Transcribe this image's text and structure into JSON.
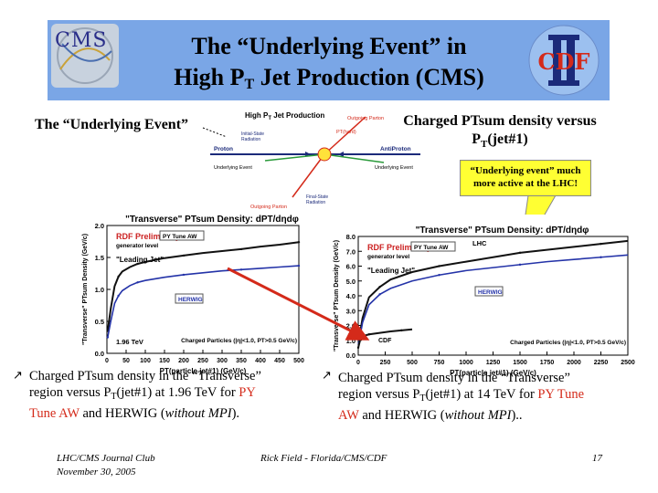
{
  "header": {
    "title_line1": "The “Underlying Event” in",
    "title_line2_pre": "High P",
    "title_line2_sub": "T",
    "title_line2_post": " Jet Production (CMS)",
    "cms_logo_text": "CMS",
    "cdf_logo_text": "CDF",
    "cdf_roman": "II"
  },
  "labels": {
    "underlying_event": "The “Underlying Event”",
    "charged_line1": "Charged PTsum density versus",
    "charged_line2_pre": "P",
    "charged_line2_sub": "T",
    "charged_line2_post": "(jet#1)"
  },
  "diagram": {
    "title": "High P",
    "title_sub": "T",
    "title_post": " Jet Production",
    "outgoing_parton_top": "Outgoing Parton",
    "pt_hard": "PT(hard)",
    "initial_state": "Initial-State",
    "radiation": "Radiation",
    "proton": "Proton",
    "antiproton": "AntiProton",
    "underlying_left": "Underlying Event",
    "underlying_right": "Underlying Event",
    "outgoing_parton_bottom": "Outgoing Parton",
    "final_state": "Final-State",
    "radiation2": "Radiation"
  },
  "callout": {
    "line1": "“Underlying event” much",
    "line2": "more active at the LHC!"
  },
  "colors": {
    "banner": "#7aa6e6",
    "callout": "#ffff33",
    "red_text": "#d42a1a",
    "data_blue": "#2433a8",
    "arrow_red": "#d42a1a"
  },
  "chart_data": [
    {
      "type": "line",
      "title": "\"Transverse\" PTsum Density: dPT/dηdφ",
      "ylabel": "\"Transverse\" PTsum Density (GeV/c)",
      "xlabel": "PT(particle jet#1)  (GeV/c)",
      "xlim": [
        0,
        500
      ],
      "ylim": [
        0,
        2.0
      ],
      "xticks": [
        "0",
        "50",
        "100",
        "150",
        "200",
        "250",
        "300",
        "350",
        "400",
        "450",
        "500"
      ],
      "yticks": [
        "0.0",
        "0.5",
        "1.0",
        "1.5",
        "2.0"
      ],
      "annotations": {
        "rdf": "RDF Preliminary",
        "gen": "generator level",
        "tune": "PY Tune AW",
        "leading": "\"Leading Jet\"",
        "herwig": "HERWIG",
        "energy": "1.96 TeV",
        "cuts": "Charged Particles (|η|<1.0, PT>0.5 GeV/c)"
      },
      "series": [
        {
          "name": "PY Tune AW",
          "x": [
            2,
            10,
            20,
            30,
            40,
            60,
            80,
            100,
            150,
            200,
            250,
            300,
            350,
            400,
            450,
            500
          ],
          "y": [
            0.35,
            0.7,
            1.05,
            1.2,
            1.28,
            1.35,
            1.4,
            1.43,
            1.49,
            1.53,
            1.57,
            1.6,
            1.63,
            1.67,
            1.7,
            1.74
          ]
        },
        {
          "name": "HERWIG",
          "x": [
            2,
            10,
            20,
            30,
            40,
            60,
            80,
            100,
            150,
            200,
            250,
            300,
            350,
            400,
            450,
            500
          ],
          "y": [
            0.25,
            0.5,
            0.78,
            0.9,
            0.98,
            1.06,
            1.11,
            1.14,
            1.19,
            1.23,
            1.26,
            1.29,
            1.31,
            1.33,
            1.35,
            1.37
          ]
        }
      ]
    },
    {
      "type": "line",
      "title": "\"Transverse\" PTsum Density: dPT/dηdφ",
      "ylabel": "\"Transverse\" PTsum Density (GeV/c)",
      "xlabel": "PT(particle jet#1)  (GeV/c)",
      "xlim": [
        0,
        2500
      ],
      "ylim": [
        0,
        8.0
      ],
      "xticks": [
        "0",
        "250",
        "500",
        "750",
        "1000",
        "1250",
        "1500",
        "1750",
        "2000",
        "2250",
        "2500"
      ],
      "yticks": [
        "0.0",
        "1.0",
        "2.0",
        "3.0",
        "4.0",
        "5.0",
        "6.0",
        "7.0",
        "8.0"
      ],
      "annotations": {
        "rdf": "RDF Preliminary",
        "gen": "generator level",
        "tune": "PY Tune AW",
        "lhc": "LHC",
        "leading": "\"Leading Jet\"",
        "herwig": "HERWIG",
        "cdf": "CDF",
        "cuts": "Charged Particles (|η|<1.0, PT>0.5 GeV/c)"
      },
      "series": [
        {
          "name": "PY Tune AW",
          "x": [
            5,
            40,
            100,
            200,
            300,
            500,
            750,
            1000,
            1250,
            1500,
            1750,
            2000,
            2250,
            2500
          ],
          "y": [
            1.0,
            2.5,
            3.9,
            4.6,
            5.1,
            5.6,
            6.0,
            6.3,
            6.6,
            6.9,
            7.1,
            7.3,
            7.5,
            7.7
          ]
        },
        {
          "name": "HERWIG",
          "x": [
            5,
            40,
            100,
            200,
            300,
            500,
            750,
            1000,
            1250,
            1500,
            1750,
            2000,
            2250,
            2500
          ],
          "y": [
            0.8,
            2.2,
            3.4,
            4.1,
            4.5,
            5.0,
            5.4,
            5.7,
            5.9,
            6.1,
            6.3,
            6.45,
            6.6,
            6.75
          ]
        },
        {
          "name": "CDF",
          "x": [
            0,
            20,
            50,
            100,
            200,
            300,
            400,
            500
          ],
          "y": [
            0.5,
            1.1,
            1.3,
            1.4,
            1.5,
            1.6,
            1.67,
            1.74
          ]
        }
      ]
    }
  ],
  "bullets": {
    "left_line1": "Charged PTsum density in the “Transverse”",
    "left_line2_pre": "region versus P",
    "left_line2_sub": "T",
    "left_line2_post": "(jet#1) at 1.96 TeV for ",
    "left_line2_red": "PY",
    "left_line3_red": "Tune AW",
    "left_line3_mid": " and HERWIG (",
    "left_line3_ital": "without MPI",
    "left_line3_end": ").",
    "right_line1": "Charged PTsum density in the “Transverse”",
    "right_line2_pre": "region versus P",
    "right_line2_sub": "T",
    "right_line2_post": "(jet#1) at 14 TeV for ",
    "right_line2_red": "PY Tune",
    "right_line3_red": "AW",
    "right_line3_mid": " and HERWIG (",
    "right_line3_ital": "without MPI",
    "right_line3_end": ").."
  },
  "footer": {
    "left_line1": "LHC/CMS Journal Club",
    "left_line2": "November 30, 2005",
    "center": "Rick Field - Florida/CMS/CDF",
    "page": "17"
  }
}
